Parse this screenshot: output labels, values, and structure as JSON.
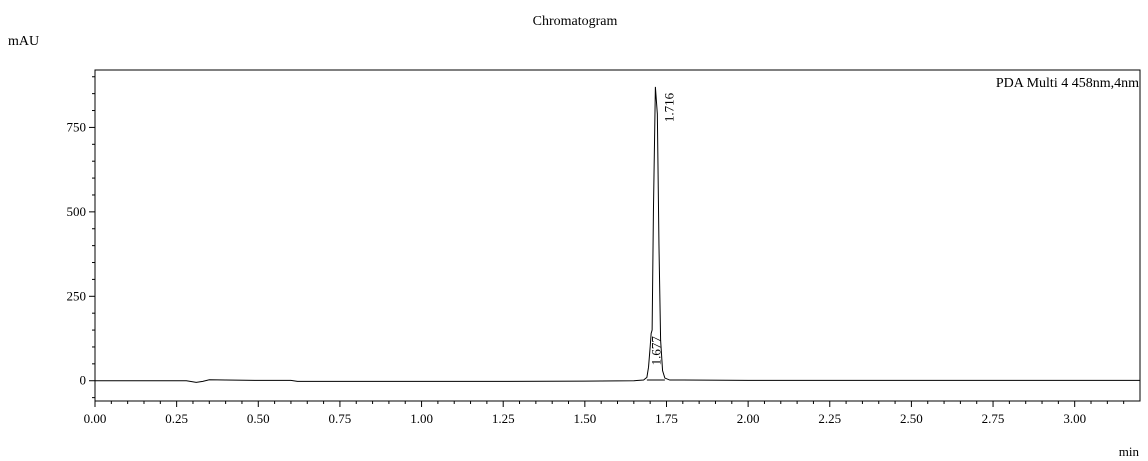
{
  "chart_data": {
    "type": "line",
    "title": "Chromatogram",
    "ylabel": "mAU",
    "xlabel": "min",
    "xlim": [
      0.0,
      3.2
    ],
    "ylim": [
      -60,
      920
    ],
    "x_ticks": [
      0.0,
      0.25,
      0.5,
      0.75,
      1.0,
      1.25,
      1.5,
      1.75,
      2.0,
      2.25,
      2.5,
      2.75,
      3.0
    ],
    "x_tick_labels": [
      "0.00",
      "0.25",
      "0.50",
      "0.75",
      "1.00",
      "1.25",
      "1.50",
      "1.75",
      "2.00",
      "2.25",
      "2.50",
      "2.75",
      "3.00"
    ],
    "y_ticks": [
      0,
      250,
      500,
      750
    ],
    "y_tick_labels": [
      "0",
      "250",
      "500",
      "750"
    ],
    "grid": false,
    "legend_position": "top-right",
    "series": [
      {
        "name": "PDA Multi 4 458nm,4nm",
        "color": "#000000",
        "x": [
          0.0,
          0.1,
          0.2,
          0.28,
          0.31,
          0.33,
          0.35,
          0.4,
          0.5,
          0.6,
          0.62,
          0.7,
          0.9,
          1.2,
          1.5,
          1.65,
          1.68,
          1.69,
          1.695,
          1.7,
          1.703,
          1.706,
          1.71,
          1.716,
          1.722,
          1.727,
          1.732,
          1.738,
          1.745,
          1.76,
          1.8,
          2.0,
          2.5,
          3.0,
          3.2
        ],
        "y": [
          0,
          0,
          0,
          0,
          -5,
          -2,
          3,
          2,
          1,
          1,
          -2,
          -2,
          -2,
          -2,
          -1,
          0,
          2,
          10,
          40,
          100,
          140,
          150,
          500,
          870,
          790,
          400,
          120,
          30,
          8,
          2,
          2,
          1,
          1,
          1,
          1
        ]
      }
    ],
    "annotations": [
      {
        "text": "1.716",
        "x": 1.716,
        "y": 870
      },
      {
        "text": "1.677",
        "x": 1.677,
        "y": 150
      }
    ]
  }
}
